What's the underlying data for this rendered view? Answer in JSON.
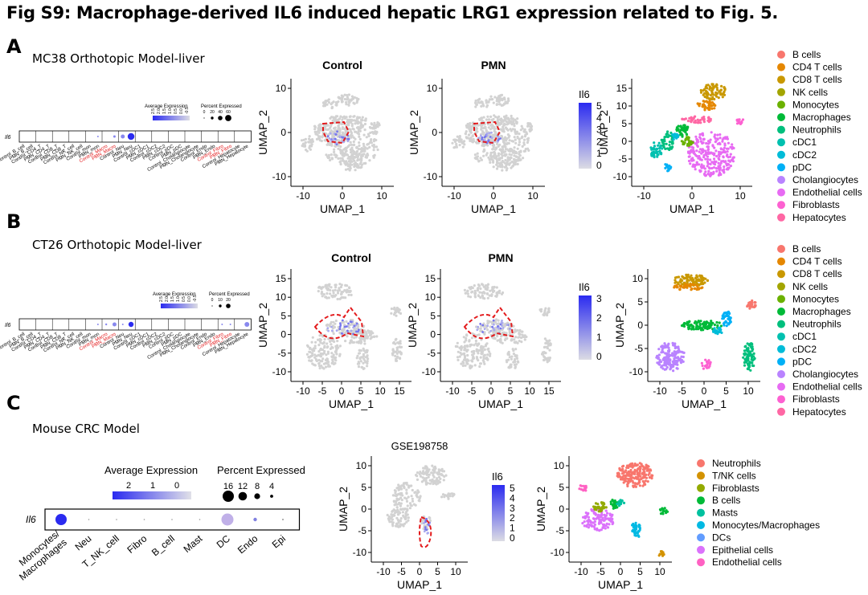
{
  "figure_title": "Fig S9: Macrophage-derived IL6 induced hepatic LRG1 expression related to Fig. 5.",
  "colors": {
    "expr_high": "#2f2fe8",
    "expr_low": "#d6d6dc",
    "cluster_grey": "#d3d3d3",
    "outline_red": "#e31a1c",
    "red_label": "#e31a1c"
  },
  "panel_a": {
    "label": "A",
    "title": "MC38 Orthotopic Model-liver",
    "dot_legend": {
      "avg_title": "Average Expression",
      "pct_title": "Percent Expressed",
      "avg_ticks": [
        "2.5",
        "2.0",
        "1.5",
        "1.0",
        "0.5",
        "0.0",
        "-0.5"
      ],
      "pct_ticks": [
        "0",
        "20",
        "40",
        "60"
      ]
    },
    "gene": "Il6",
    "groups": [
      "Control_B_cell",
      "PMN_B_cell",
      "Control_CD4_T",
      "PMN_CD4_T",
      "Control_CD8_T",
      "PMN_CD8_T",
      "Control_NK_cell",
      "PMN_NK_cell",
      "Control_mon",
      "PMN_mon",
      "Control_Macro",
      "PMN_Macro",
      "Control_Neu",
      "PMN_Neu",
      "Control_cDC1",
      "PMN_cDC1",
      "Control_cDC2",
      "PMN_cDC2",
      "Control_pDC",
      "PMN_pDC",
      "Control_Cholangiocyte",
      "PMN_Cholangiocyte",
      "Control_Endo",
      "PMN_Endo",
      "Control_Fibro",
      "PMN_Fibro",
      "Control_Hepatocyte",
      "PMN_Hepatocyte"
    ],
    "red_groups": [
      "Control_Macro",
      "PMN_Macro",
      "Control_Fibro",
      "PMN_Fibro"
    ],
    "umap_titles": [
      "Control",
      "PMN"
    ],
    "colorbar": {
      "label": "Il6",
      "ticks": [
        "5",
        "4",
        "3",
        "2",
        "1",
        "0"
      ]
    },
    "xlabel": "UMAP_1",
    "ylabel": "UMAP_2",
    "xticks": [
      "-10",
      "0",
      "10"
    ],
    "yticks": [
      "10",
      "0",
      "-10"
    ],
    "legend": [
      {
        "name": "B cells",
        "color": "#f8766d"
      },
      {
        "name": "CD4 T cells",
        "color": "#e58700"
      },
      {
        "name": "CD8 T cells",
        "color": "#c99800"
      },
      {
        "name": "NK cells",
        "color": "#a3a500"
      },
      {
        "name": "Monocytes",
        "color": "#6bb100"
      },
      {
        "name": "Macrophages",
        "color": "#00ba38"
      },
      {
        "name": "Neutrophils",
        "color": "#00bf7d"
      },
      {
        "name": "cDC1",
        "color": "#00c0af"
      },
      {
        "name": "cDC2",
        "color": "#00bcd8"
      },
      {
        "name": "pDC",
        "color": "#00b0f6"
      },
      {
        "name": "Cholangiocytes",
        "color": "#b983ff"
      },
      {
        "name": "Endothelial cells",
        "color": "#e76bf3"
      },
      {
        "name": "Fibroblasts",
        "color": "#fd61d1"
      },
      {
        "name": "Hepatocytes",
        "color": "#ff67a4"
      }
    ]
  },
  "panel_b": {
    "label": "B",
    "title": "CT26 Orthotopic Model-liver",
    "dot_legend": {
      "avg_title": "Average Expression",
      "pct_title": "Percent Expressed",
      "avg_ticks": [
        "2.5",
        "2.0",
        "1.5",
        "1.0",
        "0.5",
        "0.0",
        "-0.5"
      ],
      "pct_ticks": [
        "0",
        "10",
        "20"
      ]
    },
    "gene": "Il6",
    "groups": [
      "Control_B_cell",
      "PMN_B_cell",
      "Control_CD4_T",
      "PMN_CD4_T",
      "Control_CD8_T",
      "PMN_CD8_T",
      "Control_NK_cell",
      "PMN_NK_cell",
      "Control_mon",
      "PMN_mon",
      "Control_Macro",
      "PMN_Macro",
      "Control_Neu",
      "PMN_Neu",
      "Control_cDC1",
      "PMN_cDC1",
      "Control_cDC2",
      "PMN_cDC2",
      "Control_pDC",
      "PMN_pDC",
      "Control_Cholangiocyte",
      "PMN_Cholangiocyte",
      "Control_Endo",
      "PMN_Endo",
      "Control_Fibro",
      "PMN_Fibro",
      "Control_Hepatocyte",
      "PMN_Hepatocyte"
    ],
    "red_groups": [
      "Control_Macro",
      "PMN_Macro",
      "Control_Fibro",
      "PMN_Fibro"
    ],
    "umap_titles": [
      "Control",
      "PMN"
    ],
    "colorbar": {
      "label": "Il6",
      "ticks": [
        "3",
        "2",
        "1",
        "0"
      ]
    },
    "xlabel": "UMAP_1",
    "ylabel": "UMAP_2",
    "xticks": [
      "-10",
      "-5",
      "0",
      "5",
      "10",
      "15"
    ],
    "yticks": [
      "15",
      "10",
      "5",
      "0",
      "-5",
      "-10"
    ],
    "legend_xticks": [
      "-10",
      "-5",
      "0",
      "5",
      "10"
    ],
    "legend_yticks": [
      "10",
      "5",
      "0",
      "-5",
      "-10"
    ],
    "legend": [
      {
        "name": "B cells",
        "color": "#f8766d"
      },
      {
        "name": "CD4 T cells",
        "color": "#e58700"
      },
      {
        "name": "CD8 T cells",
        "color": "#c99800"
      },
      {
        "name": "NK cells",
        "color": "#a3a500"
      },
      {
        "name": "Monocytes",
        "color": "#6bb100"
      },
      {
        "name": "Macrophages",
        "color": "#00ba38"
      },
      {
        "name": "Neutrophils",
        "color": "#00bf7d"
      },
      {
        "name": "cDC1",
        "color": "#00c0af"
      },
      {
        "name": "cDC2",
        "color": "#00bcd8"
      },
      {
        "name": "pDC",
        "color": "#00b0f6"
      },
      {
        "name": "Cholangiocytes",
        "color": "#b983ff"
      },
      {
        "name": "Endothelial cells",
        "color": "#e76bf3"
      },
      {
        "name": "Fibroblasts",
        "color": "#fd61d1"
      },
      {
        "name": "Hepatocytes",
        "color": "#ff67a4"
      }
    ]
  },
  "panel_c": {
    "label": "C",
    "title": "Mouse CRC Model",
    "dot_legend": {
      "avg_title": "Average Expression",
      "pct_title": "Percent Expressed",
      "avg_ticks": [
        "2",
        "1",
        "0"
      ],
      "pct_ticks": [
        "16",
        "12",
        "8",
        "4"
      ]
    },
    "gene": "Il6",
    "groups": [
      "Monocytes/ Macrophages",
      "Neu",
      "T_NK_cell",
      "Fibro",
      "B_cell",
      "Mast",
      "DC",
      "Endo",
      "Epi"
    ],
    "umap_title": "GSE198758",
    "colorbar": {
      "label": "Il6",
      "ticks": [
        "5",
        "4",
        "3",
        "2",
        "1",
        "0"
      ]
    },
    "xlabel": "UMAP_1",
    "ylabel": "UMAP_2",
    "xticks": [
      "-10",
      "-5",
      "0",
      "5",
      "10"
    ],
    "yticks": [
      "10",
      "5",
      "0",
      "-5",
      "-10"
    ],
    "legend": [
      {
        "name": "Neutrophils",
        "color": "#f8766d"
      },
      {
        "name": "T/NK cells",
        "color": "#d39200"
      },
      {
        "name": "Fibroblasts",
        "color": "#93aa00"
      },
      {
        "name": "B cells",
        "color": "#00ba38"
      },
      {
        "name": "Masts",
        "color": "#00c19f"
      },
      {
        "name": "Monocytes/Macrophages",
        "color": "#00b9e3"
      },
      {
        "name": "DCs",
        "color": "#619cff"
      },
      {
        "name": "Epithelial cells",
        "color": "#db72fb"
      },
      {
        "name": "Endothelial cells",
        "color": "#ff61c3"
      }
    ]
  }
}
